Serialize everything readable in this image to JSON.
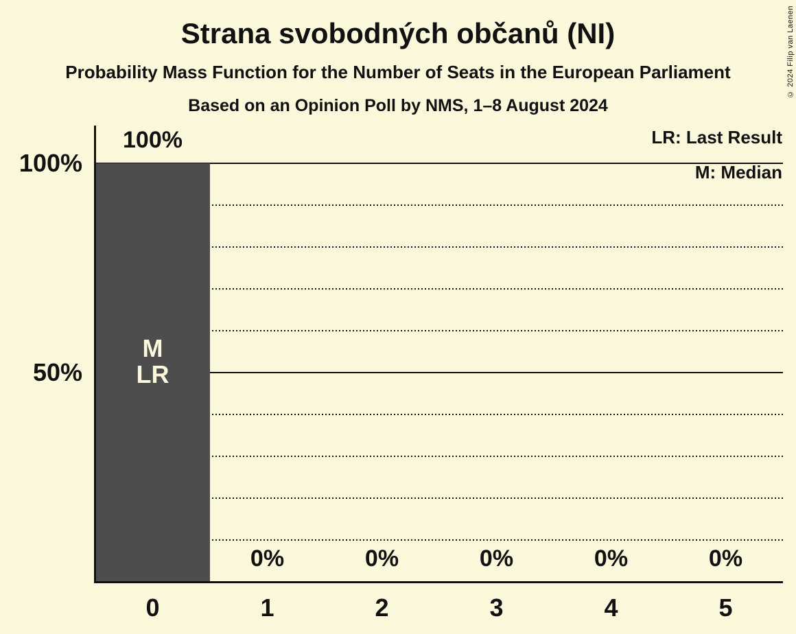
{
  "page": {
    "copyright": "© 2024 Filip van Laenen"
  },
  "chart_data": {
    "type": "bar",
    "title": "Strana svobodných občanů (NI)",
    "subtitle": "Probability Mass Function for the Number of Seats in the European Parliament",
    "caption": "Based on an Opinion Poll by NMS, 1–8 August 2024",
    "categories": [
      "0",
      "1",
      "2",
      "3",
      "4",
      "5"
    ],
    "values": [
      100,
      0,
      0,
      0,
      0,
      0
    ],
    "value_labels": [
      "100%",
      "0%",
      "0%",
      "0%",
      "0%",
      "0%"
    ],
    "ylim": [
      0,
      100
    ],
    "yticks": [
      {
        "value": 100,
        "label": "100%"
      },
      {
        "value": 50,
        "label": "50%"
      }
    ],
    "gridlines": {
      "solid": [
        100,
        50
      ],
      "dotted": [
        90,
        80,
        70,
        60,
        40,
        30,
        20,
        10
      ]
    },
    "annotations": [
      {
        "category": "0",
        "lines": [
          "M",
          "LR"
        ]
      }
    ],
    "legend": [
      "LR: Last Result",
      "M: Median"
    ],
    "legend_position": "top-right",
    "median_seats": 0,
    "last_result_seats": 0,
    "colors": {
      "background": "#fcf8dc",
      "bar": "#4d4d4d",
      "text": "#111111",
      "bar_label": "#fcf8dc",
      "line": "#111111"
    }
  }
}
